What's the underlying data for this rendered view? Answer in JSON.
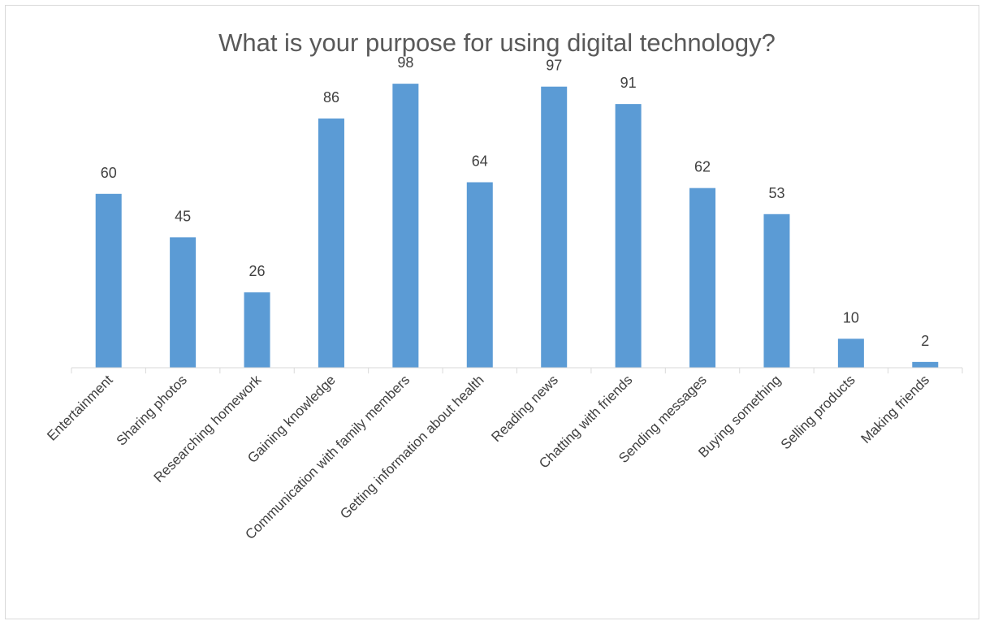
{
  "chart_data": {
    "type": "bar",
    "title": "What is your purpose for using digital technology?",
    "categories": [
      "Entertainment",
      "Sharing photos",
      "Researching homework",
      "Gaining knowledge",
      "Communication with family members",
      "Getting information about health",
      "Reading news",
      "Chatting with friends",
      "Sending messages",
      "Buying something",
      "Selling products",
      "Making friends"
    ],
    "values": [
      60,
      45,
      26,
      86,
      98,
      64,
      97,
      91,
      62,
      53,
      10,
      2
    ],
    "ylim": [
      0,
      100
    ],
    "grid": false,
    "legend": "none",
    "data_labels": true,
    "bar_color": "#5b9bd5",
    "axis_color": "#d9d9d9",
    "text_color": "#404040",
    "title_color": "#595959"
  }
}
